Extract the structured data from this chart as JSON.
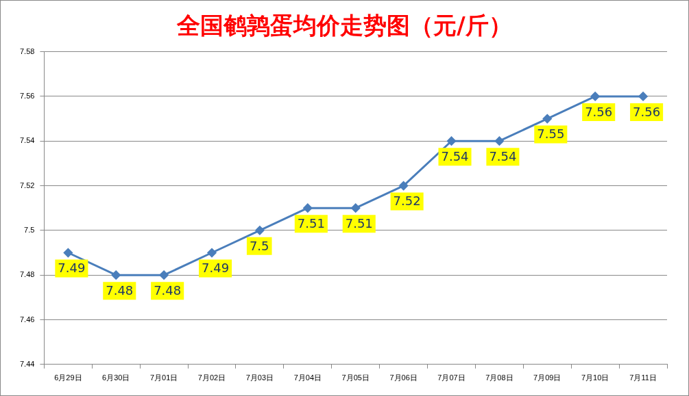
{
  "chart_data": {
    "type": "line",
    "title": "全国鹌鹑蛋均价走势图（元/斤）",
    "categories": [
      "6月29日",
      "6月30日",
      "7月01日",
      "7月02日",
      "7月03日",
      "7月04日",
      "7月05日",
      "7月06日",
      "7月07日",
      "7月08日",
      "7月09日",
      "7月10日",
      "7月11日"
    ],
    "series": [
      {
        "color": "#4a7ebb",
        "values": [
          7.49,
          7.48,
          7.48,
          7.49,
          7.5,
          7.51,
          7.51,
          7.52,
          7.54,
          7.54,
          7.55,
          7.56,
          7.56
        ]
      }
    ],
    "ylim": [
      7.44,
      7.58
    ],
    "yticks": [
      7.44,
      7.46,
      7.48,
      7.5,
      7.52,
      7.54,
      7.56,
      7.58
    ],
    "grid": "y",
    "legend": false,
    "marker": "diamond",
    "line_style": "solid",
    "data_labels": true
  }
}
